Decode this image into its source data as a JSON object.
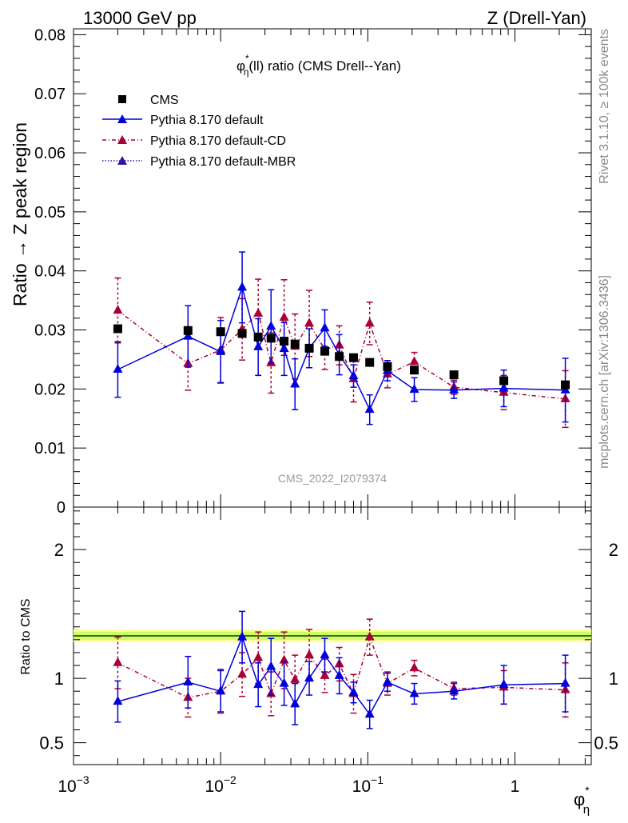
{
  "header": {
    "left": "13000 GeV pp",
    "right": "Z (Drell-Yan)"
  },
  "side_labels": {
    "rivet": "Rivet 3.1.10, ≥ 100k events",
    "mcplots": "mcplots.cern.ch [arXiv:1306.3436]"
  },
  "watermark": "CMS_2022_I2079374",
  "colors": {
    "cms": "#000000",
    "default": "#0000dd",
    "cd": "#aa0033",
    "mbr": "#3311aa",
    "band_inner": "#ccff66",
    "band_outer": "#ffff99"
  },
  "chart_data": [
    {
      "type": "scatter",
      "panel": "main",
      "title_parts": {
        "phi": "φ",
        "star": "*",
        "eta": "η",
        "rest": "(ll) ratio (CMS Drell--Yan)"
      },
      "ylabel": "Ratio → Z peak region",
      "xscale": "log",
      "xlim": [
        0.001,
        3.3
      ],
      "ylim": [
        0,
        0.081
      ],
      "yticks": [
        "0",
        "0.01",
        "0.02",
        "0.03",
        "0.04",
        "0.05",
        "0.06",
        "0.07",
        "0.08"
      ],
      "legend": [
        "CMS",
        "Pythia 8.170 default",
        "Pythia 8.170 default-CD",
        "Pythia 8.170 default-MBR"
      ],
      "x": [
        0.002,
        0.006,
        0.01,
        0.014,
        0.018,
        0.022,
        0.027,
        0.032,
        0.04,
        0.051,
        0.064,
        0.08,
        0.103,
        0.136,
        0.207,
        0.385,
        0.84,
        2.2
      ],
      "series": [
        {
          "name": "CMS",
          "values": [
            0.0302,
            0.0299,
            0.0297,
            0.0294,
            0.0288,
            0.0286,
            0.0281,
            0.0276,
            0.0269,
            0.0264,
            0.0255,
            0.0253,
            0.0245,
            0.0238,
            0.0232,
            0.0224,
            0.0214,
            0.0207
          ]
        },
        {
          "name": "Pythia 8.170 default",
          "values": [
            0.0233,
            0.0289,
            0.0263,
            0.0372,
            0.0271,
            0.0306,
            0.0268,
            0.0208,
            0.0269,
            0.0303,
            0.0258,
            0.0222,
            0.0165,
            0.0231,
            0.0199,
            0.0198,
            0.0201,
            0.0198
          ],
          "err": [
            0.0047,
            0.0052,
            0.0053,
            0.006,
            0.0048,
            0.0062,
            0.0045,
            0.0043,
            0.0033,
            0.0031,
            0.0034,
            0.0019,
            0.0025,
            0.0017,
            0.002,
            0.0014,
            0.0031,
            0.0054
          ]
        },
        {
          "name": "Pythia 8.170 default-CD",
          "values": [
            0.0333,
            0.0243,
            0.0266,
            0.0301,
            0.0328,
            0.0244,
            0.0321,
            0.0272,
            0.0311,
            0.0267,
            0.0274,
            0.0217,
            0.0311,
            0.0225,
            0.0246,
            0.0203,
            0.0194,
            0.0183
          ],
          "err": [
            0.0055,
            0.0045,
            0.0055,
            0.0052,
            0.0058,
            0.0051,
            0.0064,
            0.0055,
            0.0056,
            0.0034,
            0.0033,
            0.0039,
            0.0036,
            0.0023,
            0.0016,
            0.0012,
            0.0029,
            0.0048
          ]
        }
      ]
    },
    {
      "type": "scatter",
      "panel": "ratio",
      "ylabel": "Ratio to CMS",
      "xlabel_parts": {
        "phi": "φ",
        "star": "*",
        "eta": "η"
      },
      "xscale": "log",
      "xlim": [
        0.001,
        3.3
      ],
      "ylim": [
        0.33,
        2.33
      ],
      "yticks": [
        "0.5",
        "1",
        "2"
      ],
      "xticks": [
        {
          "x": 0.001,
          "base": "10",
          "exp": "−3"
        },
        {
          "x": 0.01,
          "base": "10",
          "exp": "−2"
        },
        {
          "x": 0.1,
          "base": "10",
          "exp": "−1"
        },
        {
          "x": 1,
          "base": "1",
          "exp": ""
        }
      ],
      "series": [
        {
          "name": "Pythia 8.170 default",
          "values": [
            0.82,
            0.97,
            0.9,
            1.32,
            0.95,
            1.09,
            0.96,
            0.8,
            1.0,
            1.18,
            1.02,
            0.89,
            0.72,
            0.97,
            0.88,
            0.9,
            0.95,
            0.96
          ],
          "err": [
            0.16,
            0.2,
            0.16,
            0.2,
            0.17,
            0.22,
            0.17,
            0.16,
            0.13,
            0.13,
            0.14,
            0.08,
            0.11,
            0.07,
            0.08,
            0.06,
            0.15,
            0.22
          ]
        },
        {
          "name": "Pythia 8.170 default-CD",
          "values": [
            1.12,
            0.85,
            0.9,
            1.03,
            1.16,
            0.88,
            1.14,
            0.99,
            1.18,
            1.02,
            1.11,
            0.88,
            1.32,
            0.96,
            1.08,
            0.92,
            0.93,
            0.91
          ],
          "err": [
            0.2,
            0.15,
            0.17,
            0.17,
            0.2,
            0.17,
            0.22,
            0.19,
            0.2,
            0.13,
            0.13,
            0.15,
            0.14,
            0.09,
            0.06,
            0.05,
            0.13,
            0.21
          ]
        }
      ]
    }
  ]
}
